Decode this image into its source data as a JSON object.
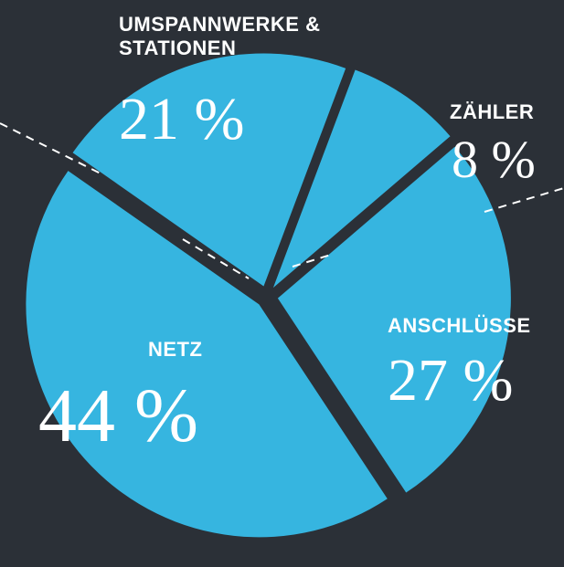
{
  "chart_data": {
    "type": "pie",
    "categories": [
      "UMSPANNWERKE & STATIONEN",
      "ZÄHLER",
      "ANSCHLÜSSE",
      "NETZ"
    ],
    "values": [
      21,
      8,
      27,
      44
    ],
    "value_labels": [
      "21 %",
      "8 %",
      "27 %",
      "44 %"
    ],
    "color": "#36b5e0"
  }
}
